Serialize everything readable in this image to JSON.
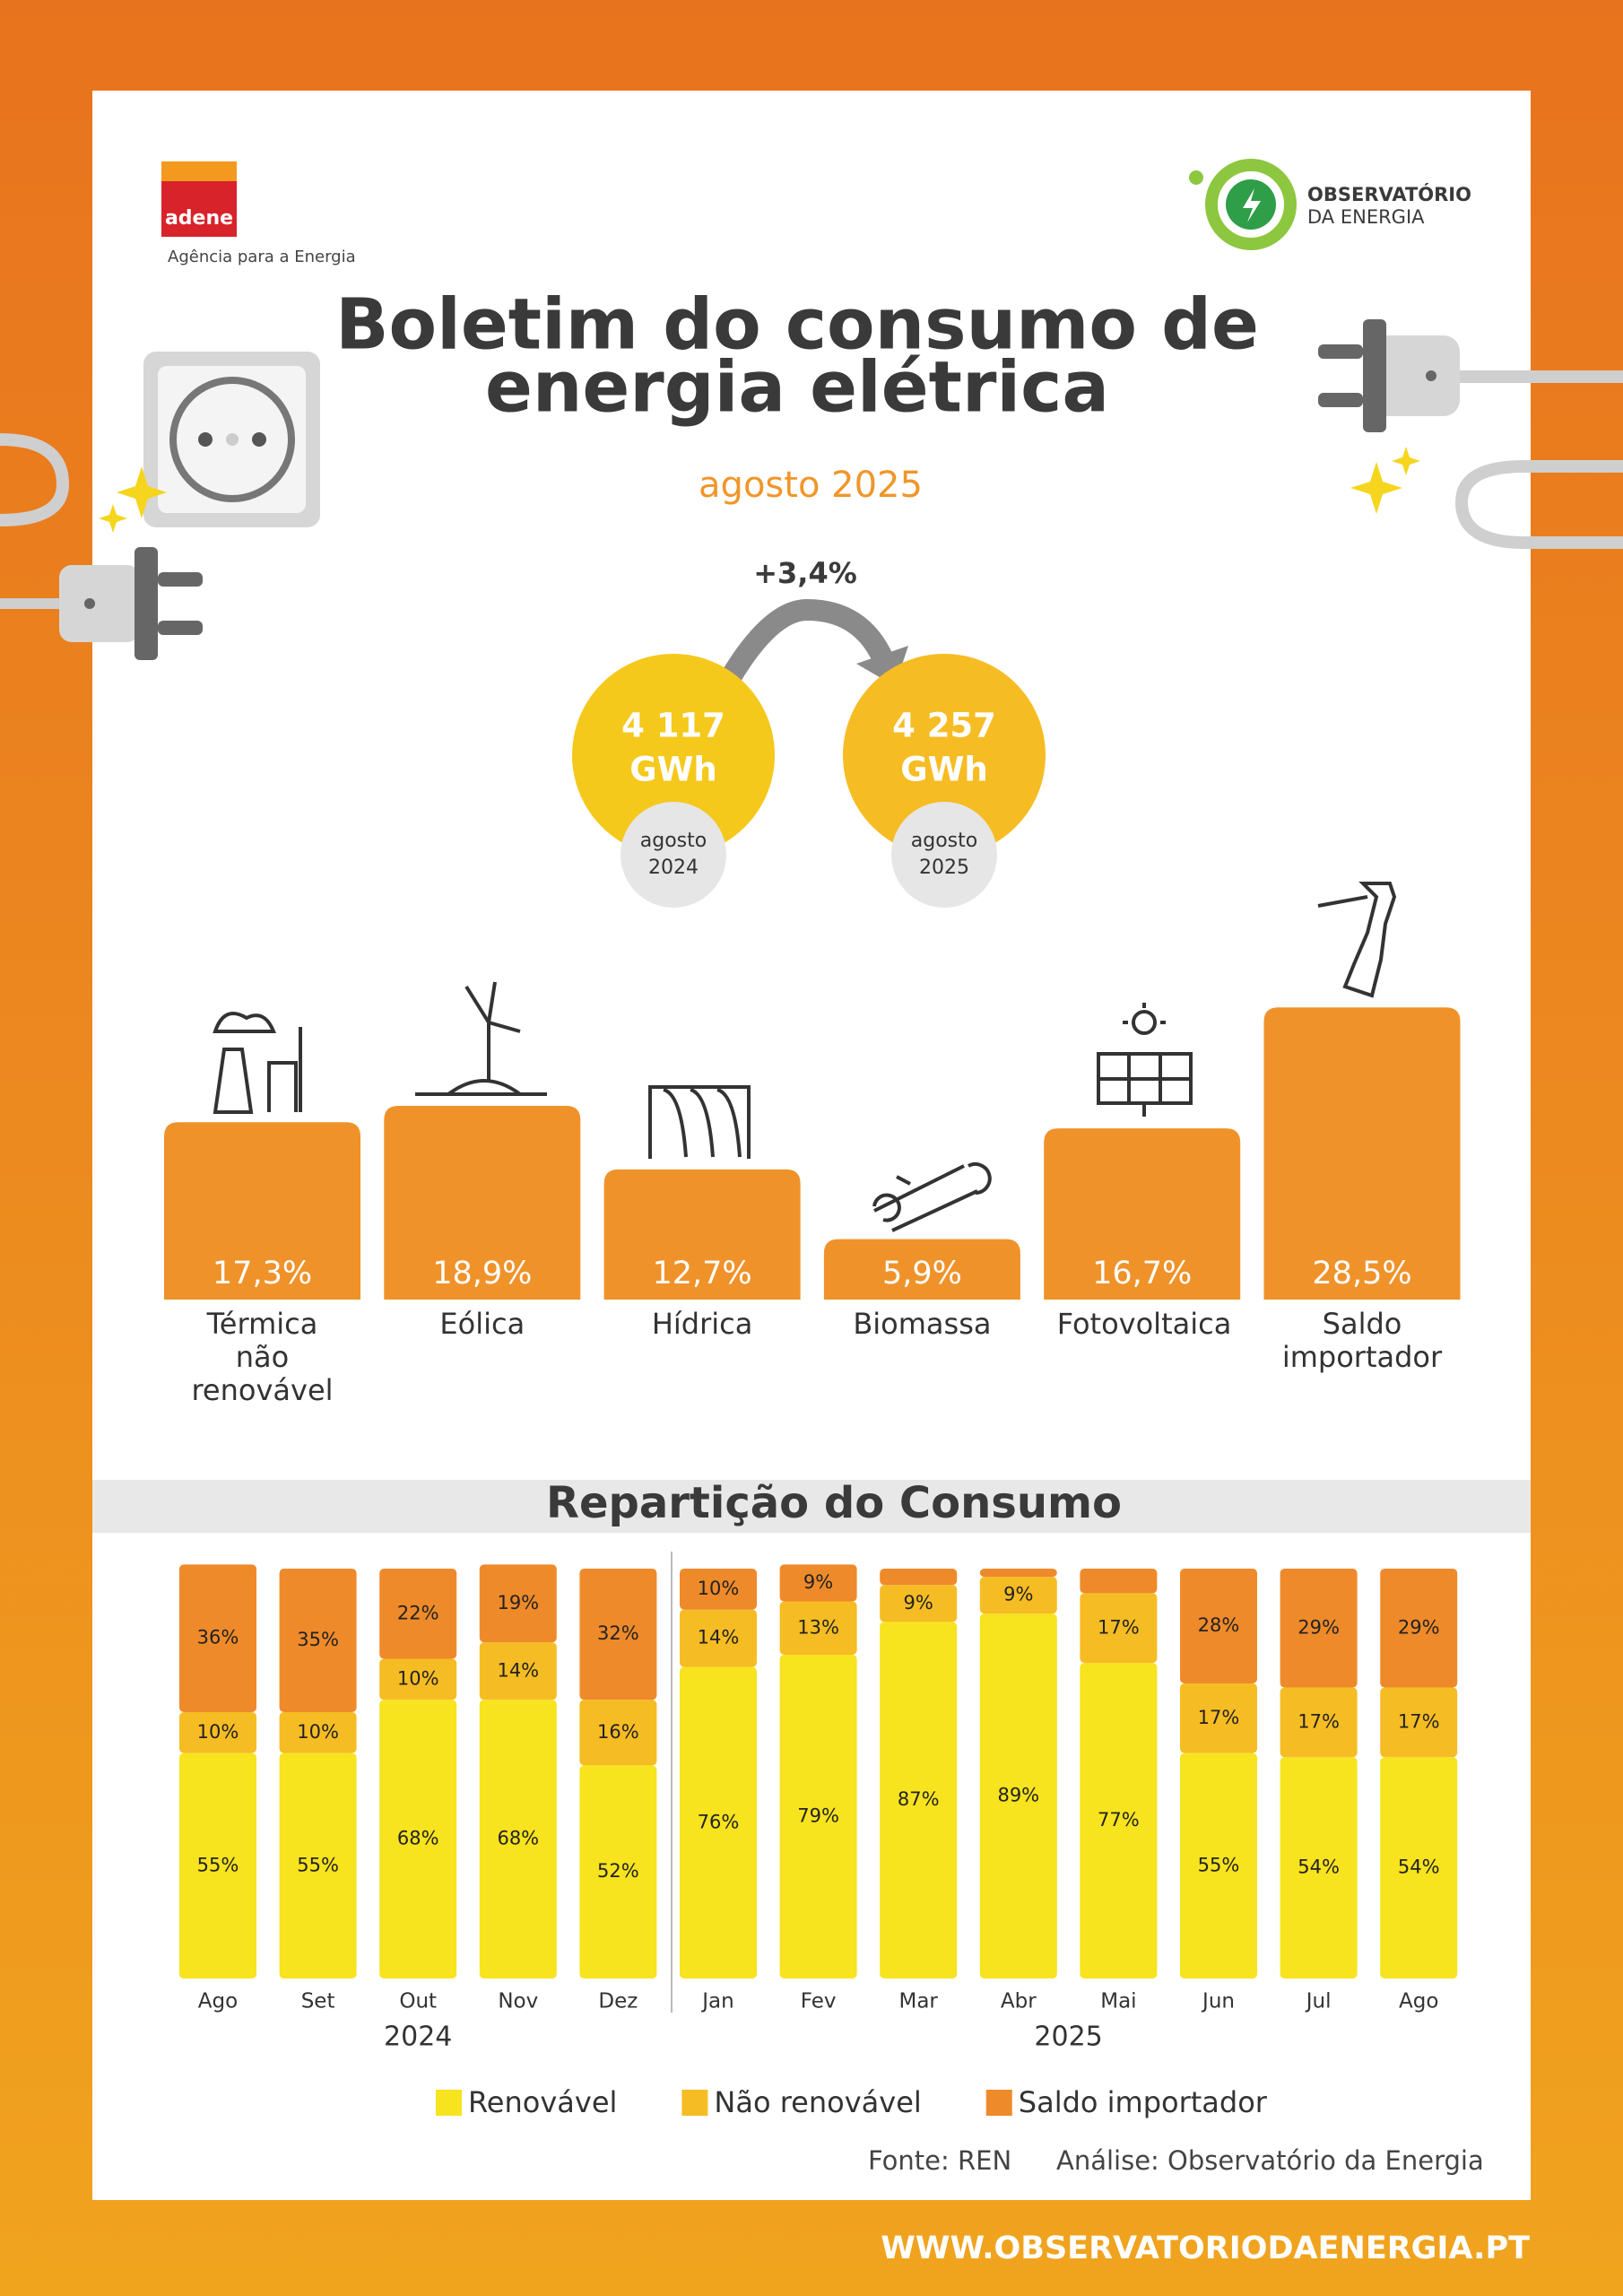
{
  "header": {
    "org": "adene",
    "org_tagline": "Agência para a Energia",
    "partner": {
      "name": "OBSERVATÓRIO",
      "sub": "DA ENERGIA"
    },
    "title": [
      "Boletim do consumo de",
      "energia elétrica"
    ],
    "subtitle": "agosto 2025"
  },
  "comparison": {
    "change": "+3,4%",
    "items": [
      {
        "value": "4 117",
        "unit": "GWh",
        "period": [
          "agosto",
          "2024"
        ]
      },
      {
        "value": "4 257",
        "unit": "GWh",
        "period": [
          "agosto",
          "2025"
        ]
      }
    ]
  },
  "chart_data": [
    {
      "type": "bar",
      "categories": [
        "Térmica não renovável",
        "Eólica",
        "Hídrica",
        "Biomassa",
        "Fotovoltaica",
        "Saldo importador"
      ],
      "values": [
        17.3,
        18.9,
        12.7,
        5.9,
        16.7,
        28.5
      ],
      "value_labels": [
        "17,3%",
        "18,9%",
        "12,7%",
        "5,9%",
        "16,7%",
        "28,5%"
      ],
      "color": "#F0922A"
    },
    {
      "type": "stacked-bar",
      "title": "Repartição do Consumo",
      "groups": [
        {
          "label": "2024",
          "categories": [
            "Ago",
            "Set",
            "Out",
            "Nov",
            "Dez"
          ]
        },
        {
          "label": "2025",
          "categories": [
            "Jan",
            "Fev",
            "Mar",
            "Abr",
            "Mai",
            "Jun",
            "Jul",
            "Ago"
          ]
        }
      ],
      "series": [
        {
          "name": "Renovável",
          "color": "#F7E31E",
          "values": [
            55,
            55,
            68,
            68,
            52,
            76,
            79,
            87,
            89,
            77,
            55,
            54,
            54
          ],
          "value_labels": [
            "55%",
            "55%",
            "68%",
            "68%",
            "52%",
            "76%",
            "79%",
            "87%",
            "89%",
            "77%",
            "55%",
            "54%",
            "54%"
          ]
        },
        {
          "name": "Não renovável",
          "color": "#F6BC23",
          "values": [
            10,
            10,
            10,
            14,
            16,
            14,
            13,
            9,
            9,
            17,
            17,
            17,
            17
          ],
          "value_labels": [
            "10%",
            "10%",
            "10%",
            "14%",
            "16%",
            "14%",
            "13%",
            "9%",
            "9%",
            "17%",
            "17%",
            "17%",
            "17%"
          ]
        },
        {
          "name": "Saldo importador",
          "color": "#EF8A2A",
          "values": [
            36,
            35,
            22,
            19,
            32,
            10,
            9,
            4,
            2,
            6,
            28,
            29,
            29
          ],
          "value_labels": [
            "36%",
            "35%",
            "22%",
            "19%",
            "32%",
            "10%",
            "9%",
            null,
            null,
            null,
            "28%",
            "29%",
            "29%"
          ]
        }
      ]
    }
  ],
  "footer": {
    "source": "Fonte: REN",
    "analysis": "Análise: Observatório da Energia",
    "url": "WWW.OBSERVATORIODAENERGIA.PT"
  }
}
